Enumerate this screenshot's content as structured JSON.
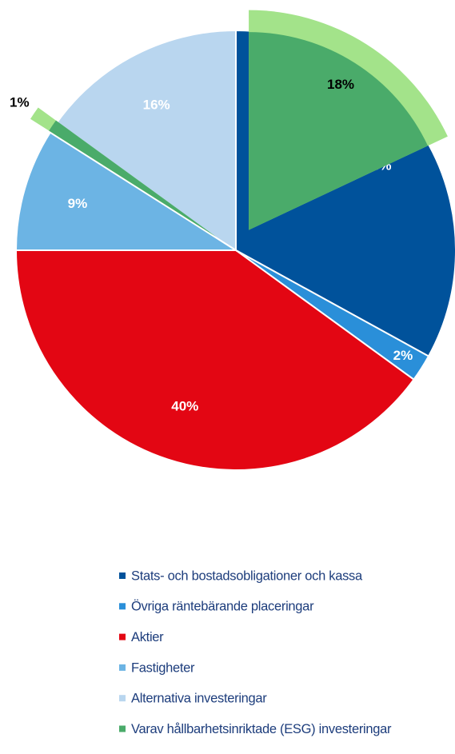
{
  "chart_data": {
    "type": "pie",
    "categories": [
      "Stats- och bostadsobligationer och kassa",
      "Övriga räntebärande placeringar",
      "Aktier",
      "Fastigheter",
      "Alternativa investeringar"
    ],
    "values": [
      33,
      2,
      40,
      9,
      16
    ],
    "value_labels": [
      "33%",
      "2%",
      "40%",
      "9%",
      "16%"
    ],
    "colors": [
      "#00529b",
      "#2a8fd9",
      "#e30613",
      "#6cb4e4",
      "#b9d6ef"
    ],
    "esg": {
      "name": "Varav hållbarhetsinriktade (ESG) investeringar",
      "color": "#4aab6a",
      "outer_color": "#a3e38a",
      "values": [
        18,
        null,
        null,
        null,
        1
      ],
      "value_labels": [
        "18%",
        null,
        null,
        null,
        "1%"
      ]
    }
  }
}
